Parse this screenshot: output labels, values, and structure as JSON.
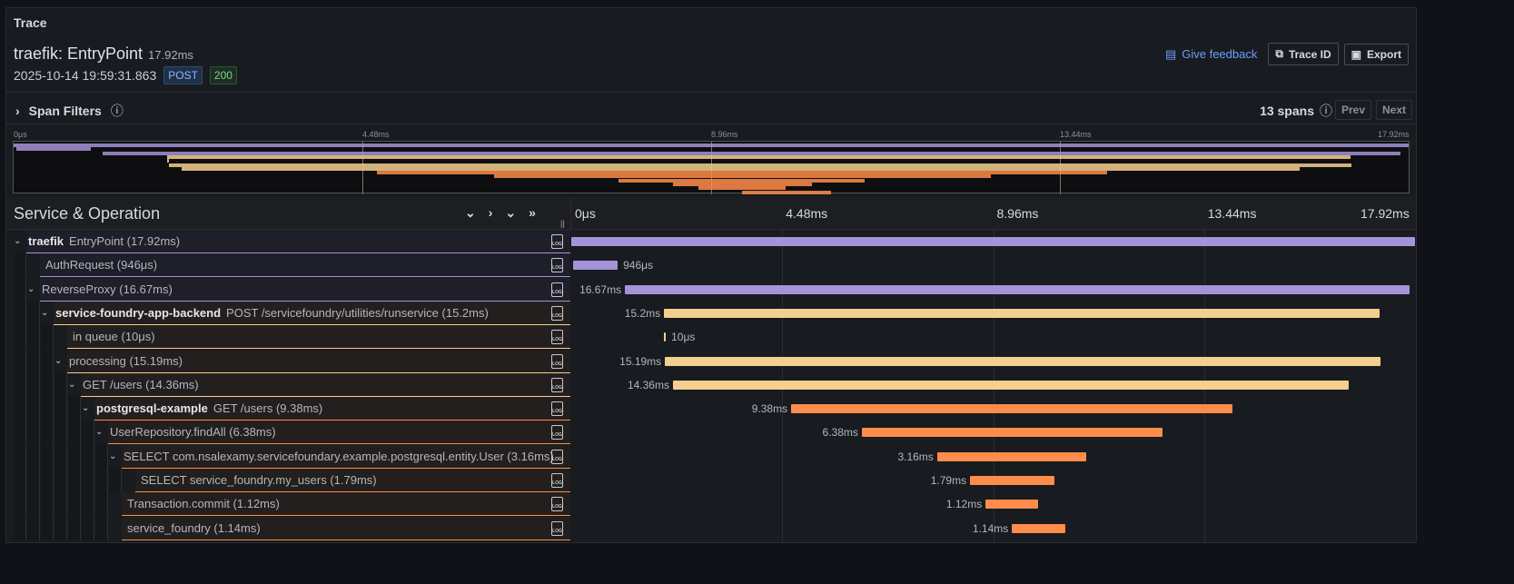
{
  "panel_title": "Trace",
  "header": {
    "title": "traefik: EntryPoint",
    "duration": "17.92ms",
    "timestamp": "2025-10-14 19:59:31.863",
    "method": "POST",
    "status": "200"
  },
  "actions": {
    "feedback": "Give feedback",
    "trace_id": "Trace ID",
    "export": "Export"
  },
  "filters": {
    "label": "Span Filters",
    "span_count": "13 spans",
    "prev": "Prev",
    "next": "Next"
  },
  "timeline": {
    "ticks": [
      "0μs",
      "4.48ms",
      "8.96ms",
      "13.44ms",
      "17.92ms"
    ],
    "total_ms": 17.92
  },
  "column_header": "Service & Operation",
  "colors": {
    "traefik": "#a593d9",
    "service-foundry-app-backend": "#f5cf8e",
    "postgresql-example": "#ff8c4a"
  },
  "spans": [
    {
      "service": "traefik",
      "name": "traefik",
      "op": "EntryPoint (17.92ms)",
      "depth": 0,
      "expand": true,
      "start": 0,
      "dur": 17.92,
      "label": "",
      "svc_shown": true
    },
    {
      "service": "traefik",
      "op": "AuthRequest (946μs)",
      "depth": 1,
      "expand": false,
      "start": 0.04,
      "dur": 0.946,
      "label": "946μs"
    },
    {
      "service": "traefik",
      "op": "ReverseProxy (16.67ms)",
      "depth": 1,
      "expand": true,
      "start": 1.14,
      "dur": 16.67,
      "label": "16.67ms"
    },
    {
      "service": "service-foundry-app-backend",
      "name": "service-foundry-app-backend",
      "op": "POST /servicefoundry/utilities/runservice (15.2ms)",
      "depth": 2,
      "expand": true,
      "start": 1.97,
      "dur": 15.2,
      "label": "15.2ms",
      "svc_shown": true
    },
    {
      "service": "service-foundry-app-backend",
      "op": "in queue (10μs)",
      "depth": 3,
      "expand": false,
      "start": 1.97,
      "dur": 0.01,
      "label": "10μs"
    },
    {
      "service": "service-foundry-app-backend",
      "op": "processing (15.19ms)",
      "depth": 3,
      "expand": true,
      "start": 1.99,
      "dur": 15.19,
      "label": "15.19ms"
    },
    {
      "service": "service-foundry-app-backend",
      "op": "GET /users (14.36ms)",
      "depth": 4,
      "expand": true,
      "start": 2.16,
      "dur": 14.36,
      "label": "14.36ms"
    },
    {
      "service": "postgresql-example",
      "name": "postgresql-example",
      "op": "GET /users (9.38ms)",
      "depth": 5,
      "expand": true,
      "start": 4.67,
      "dur": 9.38,
      "label": "9.38ms",
      "svc_shown": true
    },
    {
      "service": "postgresql-example",
      "op": "UserRepository.findAll (6.38ms)",
      "depth": 6,
      "expand": true,
      "start": 6.17,
      "dur": 6.38,
      "label": "6.38ms"
    },
    {
      "service": "postgresql-example",
      "op": "SELECT com.nsalexamy.servicefoundary.example.postgresql.entity.User (3.16ms)",
      "depth": 7,
      "expand": true,
      "start": 7.77,
      "dur": 3.16,
      "label": "3.16ms"
    },
    {
      "service": "postgresql-example",
      "op": "SELECT service_foundry.my_users (1.79ms)",
      "depth": 8,
      "expand": false,
      "start": 8.47,
      "dur": 1.79,
      "label": "1.79ms"
    },
    {
      "service": "postgresql-example",
      "op": "Transaction.commit (1.12ms)",
      "depth": 7,
      "expand": false,
      "start": 8.8,
      "dur": 1.12,
      "label": "1.12ms"
    },
    {
      "service": "postgresql-example",
      "op": "service_foundry (1.14ms)",
      "depth": 7,
      "expand": false,
      "start": 9.36,
      "dur": 1.14,
      "label": "1.14ms"
    }
  ]
}
